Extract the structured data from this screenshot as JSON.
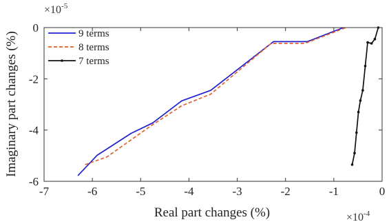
{
  "chart_data": {
    "type": "line",
    "xlabel": "Real part changes (%)",
    "ylabel": "Imaginary part changes (%)",
    "x_multiplier": {
      "base": "×10",
      "exp": "-4"
    },
    "y_multiplier": {
      "base": "×10",
      "exp": "-5"
    },
    "xlim": [
      -7,
      0
    ],
    "ylim": [
      -6,
      0
    ],
    "xticks": [
      -7,
      -6,
      -5,
      -4,
      -3,
      -2,
      -1,
      0
    ],
    "yticks": [
      -6,
      -4,
      -2,
      0
    ],
    "grid": false,
    "legend_position": "top-left",
    "series": [
      {
        "name": "9 terms",
        "color": "#1f1fcf",
        "dash": "solid",
        "marker": "none",
        "x": [
          -6.3,
          -5.9,
          -5.2,
          -4.75,
          -4.15,
          -3.55,
          -2.25,
          -1.55,
          -0.8
        ],
        "y": [
          -5.78,
          -4.98,
          -4.13,
          -3.72,
          -2.86,
          -2.45,
          -0.55,
          -0.55,
          0.0
        ]
      },
      {
        "name": "8 terms",
        "color": "#e0632c",
        "dash": "dashed",
        "marker": "none",
        "x": [
          -6.15,
          -5.7,
          -5.25,
          -4.8,
          -4.15,
          -3.55,
          -2.3,
          -1.6,
          -0.75
        ],
        "y": [
          -5.35,
          -5.05,
          -4.45,
          -3.85,
          -3.05,
          -2.6,
          -0.62,
          -0.62,
          0.0
        ]
      },
      {
        "name": "7 terms",
        "color": "#111111",
        "dash": "solid",
        "marker": "dot",
        "x": [
          -0.62,
          -0.57,
          -0.53,
          -0.49,
          -0.45,
          -0.4,
          -0.35,
          -0.3,
          -0.22,
          -0.15,
          -0.08
        ],
        "y": [
          -5.35,
          -4.9,
          -4.1,
          -3.3,
          -2.85,
          -2.45,
          -1.5,
          -0.58,
          -0.62,
          -0.45,
          0.0
        ]
      }
    ]
  }
}
